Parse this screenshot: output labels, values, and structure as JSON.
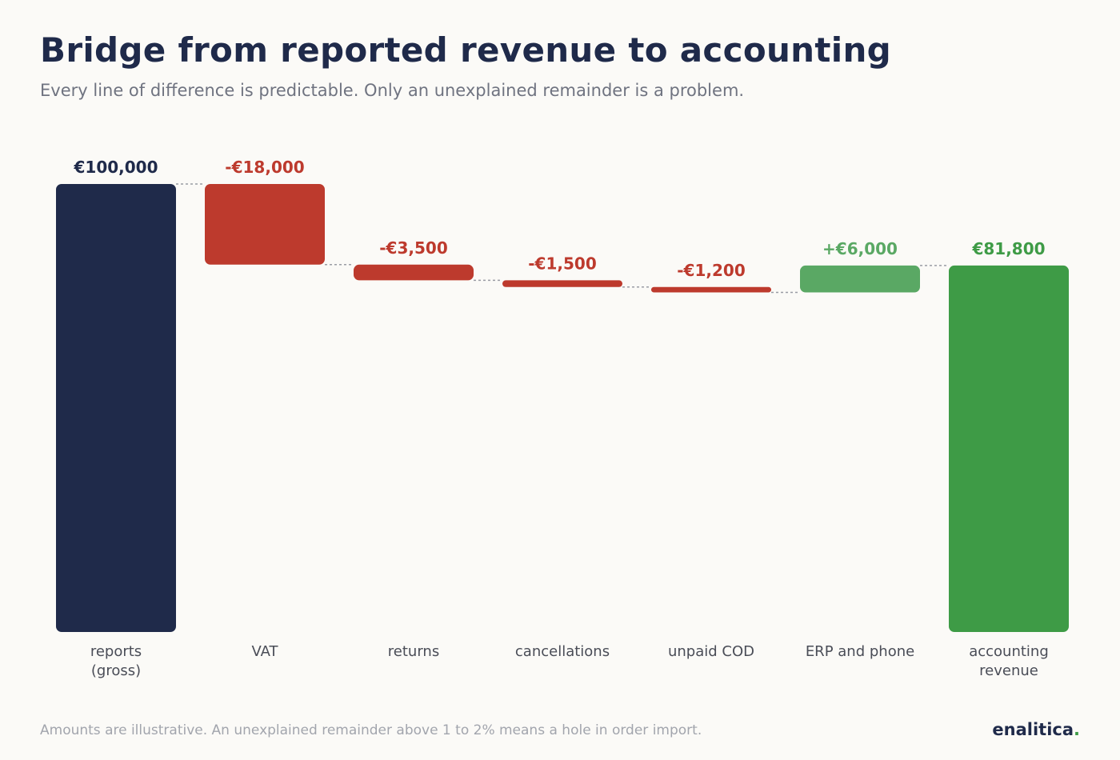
{
  "title": "Bridge from reported revenue to accounting",
  "subtitle": "Every line of difference is predictable. Only an unexplained remainder is a problem.",
  "footnote": "Amounts are illustrative. An unexplained remainder above 1 to 2% means a hole in order import.",
  "brand": {
    "name": "enalitica",
    "dot": "."
  },
  "colors": {
    "total_start": "#1f2a4a",
    "decrease": "#bd3a2d",
    "increase": "#5aa864",
    "total_end": "#3e9b46",
    "connector": "#9a9ca4",
    "category_text": "#4a4d57"
  },
  "chart_data": {
    "type": "bar",
    "subtype": "waterfall",
    "categories": [
      [
        "reports",
        "(gross)"
      ],
      [
        "VAT"
      ],
      [
        "returns"
      ],
      [
        "cancellations"
      ],
      [
        "unpaid COD"
      ],
      [
        "ERP and phone"
      ],
      [
        "accounting",
        "revenue"
      ]
    ],
    "steps": [
      {
        "kind": "total",
        "value": 100000,
        "label": "€100,000",
        "color_key": "total_start"
      },
      {
        "kind": "delta",
        "value": -18000,
        "label": "-€18,000",
        "color_key": "decrease"
      },
      {
        "kind": "delta",
        "value": -3500,
        "label": "-€3,500",
        "color_key": "decrease"
      },
      {
        "kind": "delta",
        "value": -1500,
        "label": "-€1,500",
        "color_key": "decrease"
      },
      {
        "kind": "delta",
        "value": -1200,
        "label": "-€1,200",
        "color_key": "decrease"
      },
      {
        "kind": "delta",
        "value": 6000,
        "label": "+€6,000",
        "color_key": "increase"
      },
      {
        "kind": "total",
        "value": 81800,
        "label": "€81,800",
        "color_key": "total_end"
      }
    ],
    "ylim": [
      0,
      100000
    ],
    "grid": false,
    "legend": "none"
  }
}
